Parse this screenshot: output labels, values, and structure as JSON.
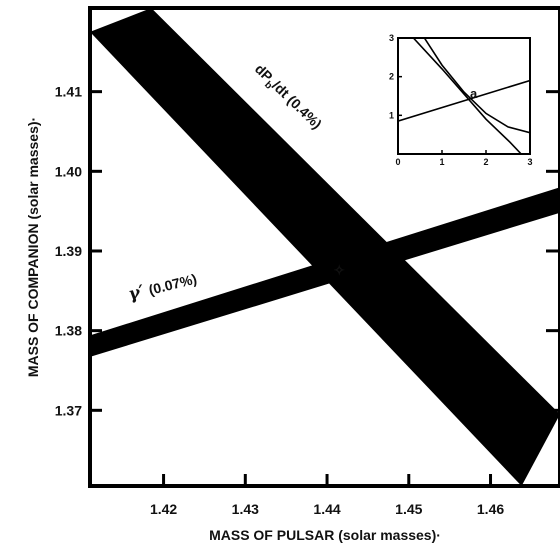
{
  "chart_data": [
    {
      "type": "area",
      "title": "",
      "xlabel": "MASS OF PULSAR (solar masses)·",
      "ylabel": "MASS OF COMPANION (solar masses)·",
      "xlim": [
        1.411,
        1.4685
      ],
      "ylim": [
        1.3605,
        1.4205
      ],
      "x_ticks": [
        1.42,
        1.43,
        1.44,
        1.45,
        1.46
      ],
      "x_tick_labels": [
        "1.42",
        "1.43",
        "1.44",
        "1.45",
        "1.46"
      ],
      "y_ticks": [
        1.37,
        1.38,
        1.39,
        1.4,
        1.41
      ],
      "y_tick_labels": [
        "1.37",
        "1.38",
        "1.39",
        "1.40",
        "1.41"
      ],
      "grid": false,
      "series": [
        {
          "name": "dP_b/dt (0.4%)",
          "label_main": "dP",
          "label_sub": "b",
          "label_rest": "/dt (0.4%)",
          "color": "#000000",
          "upper_edge": [
            {
              "x": 1.4185,
              "y": 1.4205
            },
            {
              "x": 1.4685,
              "y": 1.3695
            }
          ],
          "lower_edge": [
            {
              "x": 1.411,
              "y": 1.4175
            },
            {
              "x": 1.4638,
              "y": 1.3605
            }
          ]
        },
        {
          "name": "γ′ (0.07%)",
          "label_main": "γ′",
          "label_rest": "(0.07%)",
          "color": "#000000",
          "upper_edge": [
            {
              "x": 1.411,
              "y": 1.3794
            },
            {
              "x": 1.4685,
              "y": 1.398
            }
          ],
          "lower_edge": [
            {
              "x": 1.411,
              "y": 1.3767
            },
            {
              "x": 1.4685,
              "y": 1.3948
            }
          ]
        }
      ],
      "markers": [
        {
          "label": "✧",
          "x": 1.4415,
          "y": 1.3875,
          "color": "#ffffff"
        }
      ]
    },
    {
      "type": "line",
      "title": "",
      "xlim": [
        0,
        3
      ],
      "ylim": [
        0,
        3
      ],
      "x_ticks": [
        0,
        1,
        2,
        3
      ],
      "y_ticks": [
        1,
        2,
        3
      ],
      "x_tick_labels": [
        "0",
        "1",
        "2",
        "3"
      ],
      "y_tick_labels": [
        "1",
        "2",
        "3"
      ],
      "series": [
        {
          "points": [
            [
              0.35,
              3.0
            ],
            [
              1.0,
              2.2
            ],
            [
              2.0,
              0.9
            ],
            [
              2.55,
              0.3
            ],
            [
              2.8,
              0.0
            ]
          ]
        },
        {
          "points": [
            [
              0.6,
              3.0
            ],
            [
              1.0,
              2.3
            ],
            [
              1.5,
              1.6
            ],
            [
              2.0,
              1.05
            ],
            [
              2.5,
              0.7
            ],
            [
              3.0,
              0.55
            ]
          ]
        },
        {
          "points": [
            [
              0.0,
              0.85
            ],
            [
              3.0,
              1.9
            ]
          ]
        }
      ],
      "annotation": "a"
    }
  ]
}
